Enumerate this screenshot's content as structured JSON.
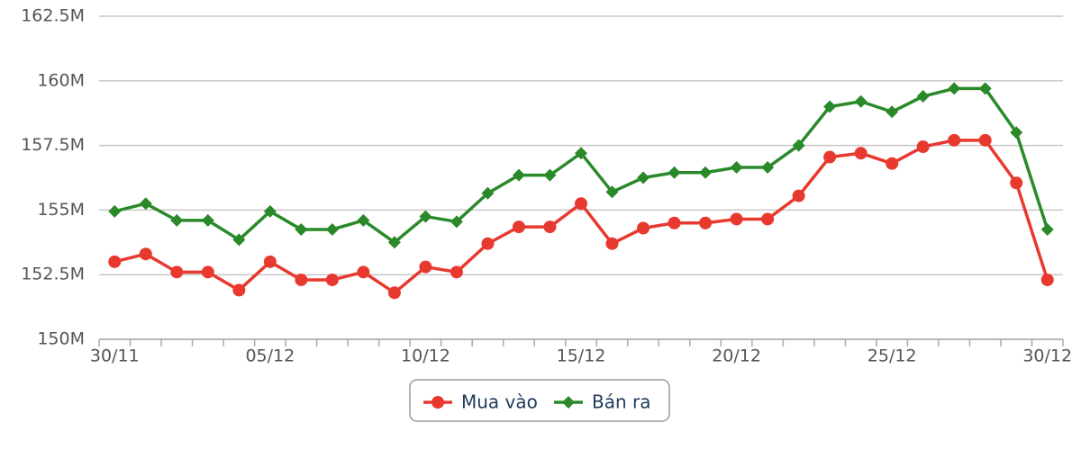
{
  "chart_data": {
    "type": "line",
    "categories": [
      "30/11",
      null,
      null,
      null,
      null,
      "05/12",
      null,
      null,
      null,
      null,
      "10/12",
      null,
      null,
      null,
      null,
      "15/12",
      null,
      null,
      null,
      null,
      "20/12",
      null,
      null,
      null,
      null,
      "25/12",
      null,
      null,
      null,
      null,
      "30/12"
    ],
    "series": [
      {
        "name": "Mua vào",
        "color": "#e8392f",
        "marker": "circle",
        "values": [
          153000000,
          153300000,
          152600000,
          152600000,
          151900000,
          153000000,
          152300000,
          152300000,
          152600000,
          151800000,
          152800000,
          152600000,
          153700000,
          154350000,
          154350000,
          155250000,
          153700000,
          154300000,
          154500000,
          154500000,
          154650000,
          154650000,
          155550000,
          157050000,
          157200000,
          156800000,
          157450000,
          157700000,
          157700000,
          156050000,
          152300000
        ]
      },
      {
        "name": "Bán ra",
        "color": "#2a8a2a",
        "marker": "diamond",
        "values": [
          154950000,
          155250000,
          154600000,
          154600000,
          153850000,
          154950000,
          154250000,
          154250000,
          154600000,
          153750000,
          154750000,
          154550000,
          155650000,
          156350000,
          156350000,
          157200000,
          155700000,
          156250000,
          156450000,
          156450000,
          156650000,
          156650000,
          157500000,
          159000000,
          159200000,
          158800000,
          159400000,
          159700000,
          159700000,
          158000000,
          154250000
        ]
      }
    ],
    "ylim": [
      150000000,
      162500000
    ],
    "yticks": [
      {
        "value": 150000000,
        "label": "150M"
      },
      {
        "value": 152500000,
        "label": "152.5M"
      },
      {
        "value": 155000000,
        "label": "155M"
      },
      {
        "value": 157500000,
        "label": "157.5M"
      },
      {
        "value": 160000000,
        "label": "160M"
      },
      {
        "value": 162500000,
        "label": "162.5M"
      }
    ],
    "grid": true
  }
}
